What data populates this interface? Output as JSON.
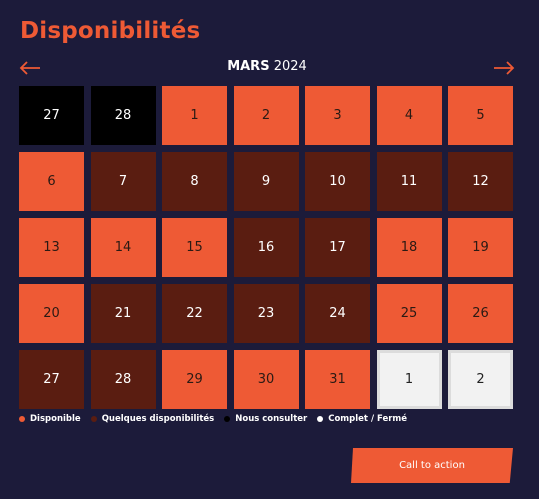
{
  "page": {
    "title": "Disponibilités"
  },
  "calendar": {
    "month": "MARS",
    "year": "2024",
    "rows": [
      [
        {
          "day": "27",
          "status": "consulter"
        },
        {
          "day": "28",
          "status": "consulter"
        },
        {
          "day": "1",
          "status": "dispo"
        },
        {
          "day": "2",
          "status": "dispo"
        },
        {
          "day": "3",
          "status": "dispo"
        },
        {
          "day": "4",
          "status": "dispo"
        },
        {
          "day": "5",
          "status": "dispo"
        }
      ],
      [
        {
          "day": "6",
          "status": "dispo"
        },
        {
          "day": "7",
          "status": "quelques"
        },
        {
          "day": "8",
          "status": "quelques"
        },
        {
          "day": "9",
          "status": "quelques"
        },
        {
          "day": "10",
          "status": "quelques"
        },
        {
          "day": "11",
          "status": "quelques"
        },
        {
          "day": "12",
          "status": "quelques"
        }
      ],
      [
        {
          "day": "13",
          "status": "dispo"
        },
        {
          "day": "14",
          "status": "dispo"
        },
        {
          "day": "15",
          "status": "dispo"
        },
        {
          "day": "16",
          "status": "quelques"
        },
        {
          "day": "17",
          "status": "quelques"
        },
        {
          "day": "18",
          "status": "dispo"
        },
        {
          "day": "19",
          "status": "dispo"
        }
      ],
      [
        {
          "day": "20",
          "status": "dispo"
        },
        {
          "day": "21",
          "status": "quelques"
        },
        {
          "day": "22",
          "status": "quelques"
        },
        {
          "day": "23",
          "status": "quelques"
        },
        {
          "day": "24",
          "status": "quelques"
        },
        {
          "day": "25",
          "status": "dispo"
        },
        {
          "day": "26",
          "status": "dispo"
        }
      ],
      [
        {
          "day": "27",
          "status": "quelques"
        },
        {
          "day": "28",
          "status": "quelques"
        },
        {
          "day": "29",
          "status": "dispo"
        },
        {
          "day": "30",
          "status": "dispo"
        },
        {
          "day": "31",
          "status": "dispo"
        },
        {
          "day": "1",
          "status": "complet"
        },
        {
          "day": "2",
          "status": "complet"
        }
      ]
    ]
  },
  "legend": [
    {
      "label": "Disponible",
      "color": "#ee5a35"
    },
    {
      "label": "Quelques disponibilités",
      "color": "#5a1d11"
    },
    {
      "label": "Nous consulter",
      "color": "#000000"
    },
    {
      "label": "Complet / Fermé",
      "color": "#ffffff"
    }
  ],
  "cta": {
    "label": "Call to action"
  },
  "colors": {
    "accent": "#ee5a35",
    "background": "#1c1b3a"
  }
}
